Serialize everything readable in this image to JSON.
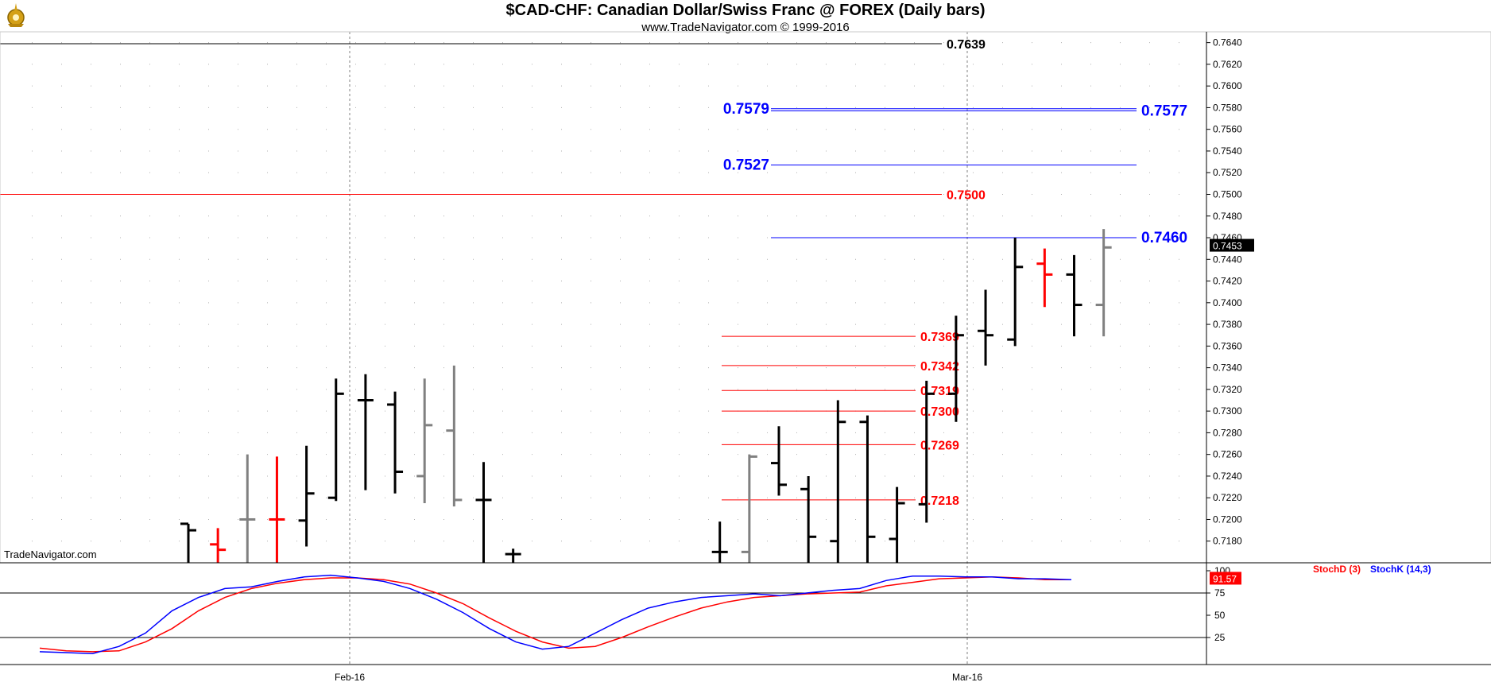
{
  "title": "$CAD-CHF:  Canadian Dollar/Swiss Franc @ FOREX  (Daily bars)",
  "subtitle": "www.TradeNavigator.com © 1999-2016",
  "watermark": "TradeNavigator.com",
  "colors": {
    "up": "#000000",
    "down": "#ff0000",
    "neutral": "#808080",
    "blue": "#0000ff",
    "red": "#ff0000",
    "grid": "#c0c0c0"
  },
  "chart_data": [
    {
      "type": "ohlc",
      "ylim": [
        0.716,
        0.765
      ],
      "y_ticks": [
        "0.7640",
        "0.7620",
        "0.7600",
        "0.7580",
        "0.7560",
        "0.7540",
        "0.7520",
        "0.7500",
        "0.7480",
        "0.7460",
        "0.7440",
        "0.7420",
        "0.7400",
        "0.7380",
        "0.7360",
        "0.7340",
        "0.7320",
        "0.7300",
        "0.7280",
        "0.7260",
        "0.7240",
        "0.7220",
        "0.7200",
        "0.7180"
      ],
      "x_ticks": [
        "Feb-16",
        "Mar-16"
      ],
      "last_price": "0.7453",
      "bars": [
        {
          "h": 0.7196,
          "l": 0.716,
          "o": 0.7196,
          "c": 0.719,
          "col": "up"
        },
        {
          "h": 0.7192,
          "l": 0.716,
          "o": 0.7177,
          "c": 0.7172,
          "col": "down"
        },
        {
          "h": 0.726,
          "l": 0.716,
          "o": 0.72,
          "c": 0.72,
          "col": "neutral"
        },
        {
          "h": 0.7258,
          "l": 0.716,
          "o": 0.72,
          "c": 0.72,
          "col": "down"
        },
        {
          "h": 0.7268,
          "l": 0.7175,
          "o": 0.7199,
          "c": 0.7224,
          "col": "up"
        },
        {
          "h": 0.733,
          "l": 0.7217,
          "o": 0.722,
          "c": 0.7316,
          "col": "up"
        },
        {
          "h": 0.7334,
          "l": 0.7227,
          "o": 0.731,
          "c": 0.731,
          "col": "up"
        },
        {
          "h": 0.7318,
          "l": 0.7224,
          "o": 0.7306,
          "c": 0.7244,
          "col": "up"
        },
        {
          "h": 0.733,
          "l": 0.7215,
          "o": 0.724,
          "c": 0.7287,
          "col": "neutral"
        },
        {
          "h": 0.7342,
          "l": 0.7212,
          "o": 0.7282,
          "c": 0.7218,
          "col": "neutral"
        },
        {
          "h": 0.7253,
          "l": 0.716,
          "o": 0.7218,
          "c": 0.7218,
          "col": "up"
        },
        {
          "h": 0.7173,
          "l": 0.716,
          "o": 0.7168,
          "c": 0.7168,
          "col": "up"
        },
        null,
        null,
        null,
        null,
        null,
        null,
        {
          "h": 0.7198,
          "l": 0.716,
          "o": 0.717,
          "c": 0.717,
          "col": "up"
        },
        {
          "h": 0.726,
          "l": 0.716,
          "o": 0.717,
          "c": 0.7258,
          "col": "neutral"
        },
        {
          "h": 0.7286,
          "l": 0.7222,
          "o": 0.7252,
          "c": 0.7232,
          "col": "up"
        },
        {
          "h": 0.724,
          "l": 0.716,
          "o": 0.7228,
          "c": 0.7184,
          "col": "up"
        },
        {
          "h": 0.731,
          "l": 0.716,
          "o": 0.718,
          "c": 0.729,
          "col": "up"
        },
        {
          "h": 0.7296,
          "l": 0.716,
          "o": 0.729,
          "c": 0.7184,
          "col": "up"
        },
        {
          "h": 0.723,
          "l": 0.716,
          "o": 0.7182,
          "c": 0.7215,
          "col": "up"
        },
        {
          "h": 0.7328,
          "l": 0.7197,
          "o": 0.7214,
          "c": 0.7316,
          "col": "up"
        },
        {
          "h": 0.7388,
          "l": 0.729,
          "o": 0.7316,
          "c": 0.737,
          "col": "up"
        },
        {
          "h": 0.7412,
          "l": 0.7342,
          "o": 0.7374,
          "c": 0.737,
          "col": "up"
        },
        {
          "h": 0.746,
          "l": 0.736,
          "o": 0.7366,
          "c": 0.7433,
          "col": "up"
        },
        {
          "h": 0.745,
          "l": 0.7396,
          "o": 0.7436,
          "c": 0.7426,
          "col": "down"
        },
        {
          "h": 0.7444,
          "l": 0.7369,
          "o": 0.7426,
          "c": 0.7398,
          "col": "up"
        },
        {
          "h": 0.7468,
          "l": 0.7369,
          "o": 0.7398,
          "c": 0.7451,
          "col": "neutral"
        }
      ],
      "levels": [
        {
          "value": 0.7639,
          "label": "0.7639",
          "color": "black",
          "from": 0,
          "to": 1185,
          "label_side": "right"
        },
        {
          "value": 0.7579,
          "label": "0.7579",
          "color": "blue",
          "from": 970,
          "to": 1430,
          "label_side": "left"
        },
        {
          "value": 0.7577,
          "label": "0.7577",
          "color": "blue",
          "from": 970,
          "to": 1430,
          "label_side": "right"
        },
        {
          "value": 0.7527,
          "label": "0.7527",
          "color": "blue",
          "from": 970,
          "to": 1430,
          "label_side": "left"
        },
        {
          "value": 0.75,
          "label": "0.7500",
          "color": "red",
          "from": 0,
          "to": 1185,
          "label_side": "right"
        },
        {
          "value": 0.746,
          "label": "0.7460",
          "color": "blue",
          "from": 970,
          "to": 1430,
          "label_side": "right"
        },
        {
          "value": 0.7369,
          "label": "0.7369",
          "color": "red",
          "from": 908,
          "to": 1152,
          "label_side": "right"
        },
        {
          "value": 0.7342,
          "label": "0.7342",
          "color": "red",
          "from": 908,
          "to": 1152,
          "label_side": "right"
        },
        {
          "value": 0.7319,
          "label": "0.7319",
          "color": "red",
          "from": 908,
          "to": 1152,
          "label_side": "right"
        },
        {
          "value": 0.73,
          "label": "0.7300",
          "color": "red",
          "from": 908,
          "to": 1152,
          "label_side": "right"
        },
        {
          "value": 0.7269,
          "label": "0.7269",
          "color": "red",
          "from": 908,
          "to": 1152,
          "label_side": "right"
        },
        {
          "value": 0.7218,
          "label": "0.7218",
          "color": "red",
          "from": 908,
          "to": 1152,
          "label_side": "right"
        }
      ]
    },
    {
      "type": "line",
      "title": "Stochastic",
      "ylim": [
        0,
        100
      ],
      "y_ticks": [
        "100",
        "75",
        "50",
        "25"
      ],
      "last_value": "91.57",
      "series": [
        {
          "name": "StochD (3)",
          "color": "#ff0000",
          "values": [
            13,
            10,
            9,
            10,
            20,
            35,
            55,
            70,
            80,
            86,
            90,
            92,
            92,
            90,
            85,
            75,
            63,
            47,
            32,
            20,
            13,
            15,
            25,
            37,
            48,
            58,
            65,
            70,
            72,
            74,
            75,
            76,
            83,
            87,
            91,
            92,
            93,
            92,
            90,
            90
          ]
        },
        {
          "name": "StochK (14,3)",
          "color": "#0000ff",
          "values": [
            9,
            8,
            7,
            15,
            30,
            55,
            70,
            80,
            82,
            88,
            93,
            95,
            92,
            88,
            80,
            68,
            53,
            35,
            20,
            12,
            15,
            30,
            45,
            58,
            65,
            70,
            72,
            74,
            72,
            75,
            78,
            80,
            89,
            94,
            94,
            93,
            93,
            91,
            91,
            90
          ]
        }
      ]
    }
  ]
}
